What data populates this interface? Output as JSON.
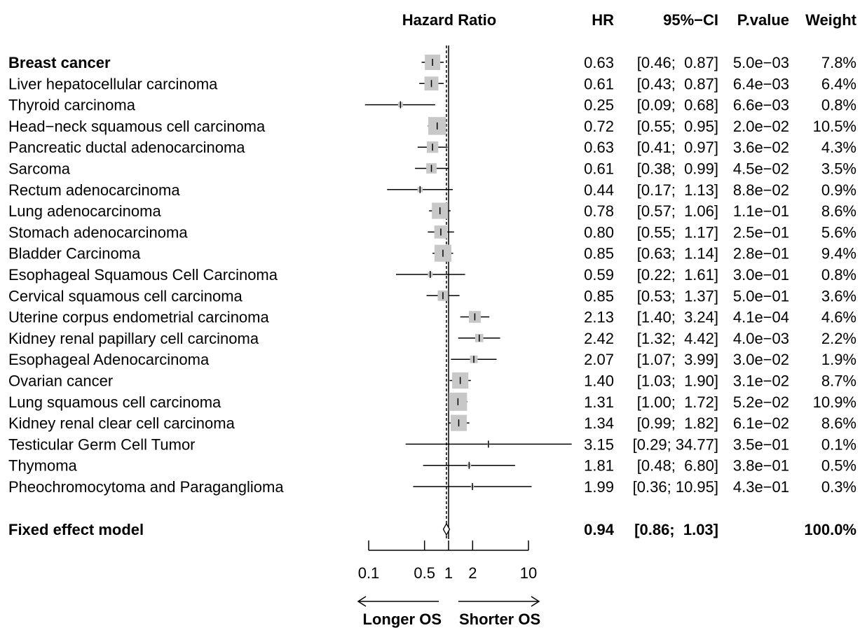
{
  "chart_data": {
    "type": "forest",
    "headers": {
      "plot": "Hazard Ratio",
      "hr": "HR",
      "ci": "95%−CI",
      "p": "P.value",
      "weight": "Weight"
    },
    "x_scale": "log",
    "xlim": [
      0.1,
      10
    ],
    "x_ticks": [
      {
        "value": 0.1,
        "label": "0.1"
      },
      {
        "value": 0.5,
        "label": "0.5"
      },
      {
        "value": 1,
        "label": "1"
      },
      {
        "value": 2,
        "label": "2"
      },
      {
        "value": 10,
        "label": "10"
      }
    ],
    "reference_line": 1,
    "summary_line": 0.94,
    "direction_labels": {
      "left": "Longer OS",
      "right": "Shorter OS"
    },
    "studies": [
      {
        "name": "Breast cancer",
        "bold": true,
        "hr": 0.63,
        "lo": 0.46,
        "hi": 0.87,
        "hr_text": "0.63",
        "ci_text": "[0.46;  0.87]",
        "p_text": "5.0e−03",
        "weight": 7.8,
        "weight_text": "7.8%"
      },
      {
        "name": "Liver hepatocellular carcinoma",
        "hr": 0.61,
        "lo": 0.43,
        "hi": 0.87,
        "hr_text": "0.61",
        "ci_text": "[0.43;  0.87]",
        "p_text": "6.4e−03",
        "weight": 6.4,
        "weight_text": "6.4%"
      },
      {
        "name": "Thyroid carcinoma",
        "hr": 0.25,
        "lo": 0.09,
        "hi": 0.68,
        "hr_text": "0.25",
        "ci_text": "[0.09;  0.68]",
        "p_text": "6.6e−03",
        "weight": 0.8,
        "weight_text": "0.8%"
      },
      {
        "name": "Head−neck squamous cell carcinoma",
        "hr": 0.72,
        "lo": 0.55,
        "hi": 0.95,
        "hr_text": "0.72",
        "ci_text": "[0.55;  0.95]",
        "p_text": "2.0e−02",
        "weight": 10.5,
        "weight_text": "10.5%"
      },
      {
        "name": "Pancreatic ductal adenocarcinoma",
        "hr": 0.63,
        "lo": 0.41,
        "hi": 0.97,
        "hr_text": "0.63",
        "ci_text": "[0.41;  0.97]",
        "p_text": "3.6e−02",
        "weight": 4.3,
        "weight_text": "4.3%"
      },
      {
        "name": "Sarcoma",
        "hr": 0.61,
        "lo": 0.38,
        "hi": 0.99,
        "hr_text": "0.61",
        "ci_text": "[0.38;  0.99]",
        "p_text": "4.5e−02",
        "weight": 3.5,
        "weight_text": "3.5%"
      },
      {
        "name": "Rectum adenocarcinoma",
        "hr": 0.44,
        "lo": 0.17,
        "hi": 1.13,
        "hr_text": "0.44",
        "ci_text": "[0.17;  1.13]",
        "p_text": "8.8e−02",
        "weight": 0.9,
        "weight_text": "0.9%"
      },
      {
        "name": "Lung adenocarcinoma",
        "hr": 0.78,
        "lo": 0.57,
        "hi": 1.06,
        "hr_text": "0.78",
        "ci_text": "[0.57;  1.06]",
        "p_text": "1.1e−01",
        "weight": 8.6,
        "weight_text": "8.6%"
      },
      {
        "name": "Stomach adenocarcinoma",
        "hr": 0.8,
        "lo": 0.55,
        "hi": 1.17,
        "hr_text": "0.80",
        "ci_text": "[0.55;  1.17]",
        "p_text": "2.5e−01",
        "weight": 5.6,
        "weight_text": "5.6%"
      },
      {
        "name": "Bladder Carcinoma",
        "hr": 0.85,
        "lo": 0.63,
        "hi": 1.14,
        "hr_text": "0.85",
        "ci_text": "[0.63;  1.14]",
        "p_text": "2.8e−01",
        "weight": 9.4,
        "weight_text": "9.4%"
      },
      {
        "name": "Esophageal Squamous Cell Carcinoma",
        "hr": 0.59,
        "lo": 0.22,
        "hi": 1.61,
        "hr_text": "0.59",
        "ci_text": "[0.22;  1.61]",
        "p_text": "3.0e−01",
        "weight": 0.8,
        "weight_text": "0.8%"
      },
      {
        "name": "Cervical squamous cell carcinoma",
        "hr": 0.85,
        "lo": 0.53,
        "hi": 1.37,
        "hr_text": "0.85",
        "ci_text": "[0.53;  1.37]",
        "p_text": "5.0e−01",
        "weight": 3.6,
        "weight_text": "3.6%"
      },
      {
        "name": "Uterine corpus endometrial carcinoma",
        "hr": 2.13,
        "lo": 1.4,
        "hi": 3.24,
        "hr_text": "2.13",
        "ci_text": "[1.40;  3.24]",
        "p_text": "4.1e−04",
        "weight": 4.6,
        "weight_text": "4.6%"
      },
      {
        "name": "Kidney renal papillary cell carcinoma",
        "hr": 2.42,
        "lo": 1.32,
        "hi": 4.42,
        "hr_text": "2.42",
        "ci_text": "[1.32;  4.42]",
        "p_text": "4.0e−03",
        "weight": 2.2,
        "weight_text": "2.2%"
      },
      {
        "name": "Esophageal Adenocarcinoma",
        "hr": 2.07,
        "lo": 1.07,
        "hi": 3.99,
        "hr_text": "2.07",
        "ci_text": "[1.07;  3.99]",
        "p_text": "3.0e−02",
        "weight": 1.9,
        "weight_text": "1.9%"
      },
      {
        "name": "Ovarian cancer",
        "hr": 1.4,
        "lo": 1.03,
        "hi": 1.9,
        "hr_text": "1.40",
        "ci_text": "[1.03;  1.90]",
        "p_text": "3.1e−02",
        "weight": 8.7,
        "weight_text": "8.7%"
      },
      {
        "name": "Lung squamous cell carcinoma",
        "hr": 1.31,
        "lo": 1.0,
        "hi": 1.72,
        "hr_text": "1.31",
        "ci_text": "[1.00;  1.72]",
        "p_text": "5.2e−02",
        "weight": 10.9,
        "weight_text": "10.9%"
      },
      {
        "name": "Kidney renal clear cell carcinoma",
        "hr": 1.34,
        "lo": 0.99,
        "hi": 1.82,
        "hr_text": "1.34",
        "ci_text": "[0.99;  1.82]",
        "p_text": "6.1e−02",
        "weight": 8.6,
        "weight_text": "8.6%"
      },
      {
        "name": "Testicular Germ Cell Tumor",
        "hr": 3.15,
        "lo": 0.29,
        "hi": 34.77,
        "hr_text": "3.15",
        "ci_text": "[0.29; 34.77]",
        "p_text": "3.5e−01",
        "weight": 0.1,
        "weight_text": "0.1%"
      },
      {
        "name": "Thymoma",
        "hr": 1.81,
        "lo": 0.48,
        "hi": 6.8,
        "hr_text": "1.81",
        "ci_text": "[0.48;  6.80]",
        "p_text": "3.8e−01",
        "weight": 0.5,
        "weight_text": "0.5%"
      },
      {
        "name": "Pheochromocytoma and Paraganglioma",
        "hr": 1.99,
        "lo": 0.36,
        "hi": 10.95,
        "hr_text": "1.99",
        "ci_text": "[0.36; 10.95]",
        "p_text": "4.3e−01",
        "weight": 0.3,
        "weight_text": "0.3%"
      }
    ],
    "summary": {
      "name": "Fixed effect model",
      "hr": 0.94,
      "lo": 0.86,
      "hi": 1.03,
      "hr_text": "0.94",
      "ci_text": "[0.86;  1.03]",
      "weight_text": "100.0%"
    },
    "colors": {
      "box": "#c8c8c8",
      "line": "#000000",
      "text": "#000000"
    }
  }
}
